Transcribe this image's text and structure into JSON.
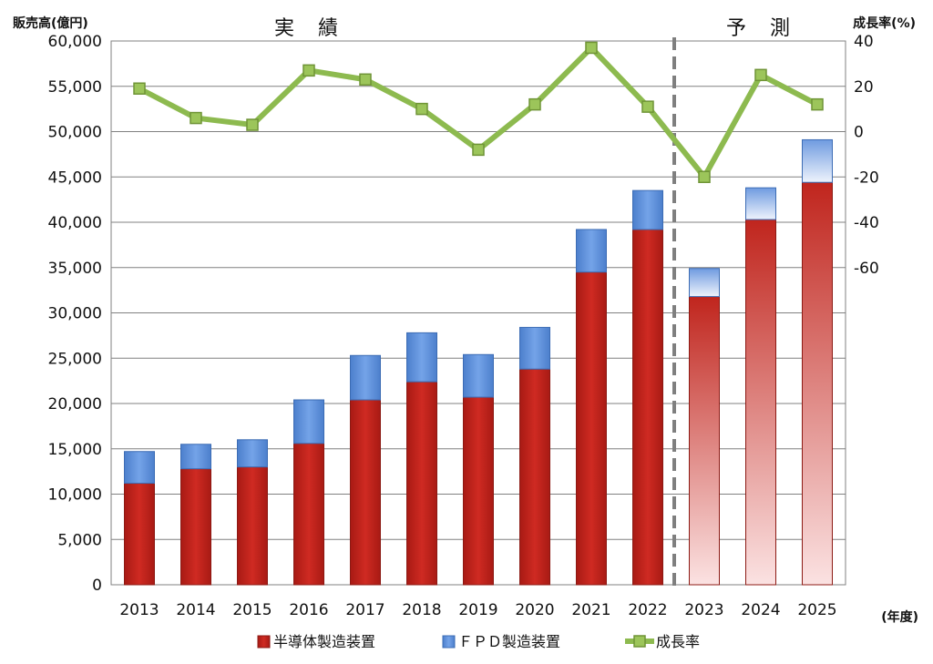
{
  "chart_data": {
    "type": "bar",
    "stacked": true,
    "categories": [
      "2013",
      "2014",
      "2015",
      "2016",
      "2017",
      "2018",
      "2019",
      "2020",
      "2021",
      "2022",
      "2023",
      "2024",
      "2025"
    ],
    "series": [
      {
        "name": "半導体製造装置",
        "color": "#c0251d",
        "values": [
          11200,
          12800,
          13000,
          15600,
          20400,
          22400,
          20700,
          23800,
          34500,
          39200,
          31800,
          40300,
          44400
        ]
      },
      {
        "name": "ＦＰＤ製造装置",
        "color": "#5b8fd8",
        "values": [
          3500,
          2700,
          3000,
          4800,
          4900,
          5400,
          4700,
          4600,
          4700,
          4300,
          3100,
          3500,
          4700
        ]
      }
    ],
    "line_series": {
      "name": "成長率",
      "color": "#8dba4f",
      "values": [
        19,
        6,
        3,
        27,
        23,
        10,
        -8,
        12,
        37,
        11,
        -20,
        25,
        12
      ]
    },
    "forecast_from_category": "2023",
    "section_labels": {
      "actual": "実　績",
      "forecast": "予　測"
    },
    "ylabel": "販売高(億円)",
    "y2label": "成長率(%)",
    "xlabel": "(年度)",
    "ylim": [
      0,
      60000
    ],
    "y_ticks": [
      "0",
      "5,000",
      "10,000",
      "15,000",
      "20,000",
      "25,000",
      "30,000",
      "35,000",
      "40,000",
      "45,000",
      "50,000",
      "55,000",
      "60,000"
    ],
    "y2lim": [
      -200,
      40
    ],
    "y2_ticks": [
      "40",
      "20",
      "0",
      "-20",
      "-40",
      "-60"
    ],
    "y2_tick_values": [
      40,
      20,
      0,
      -20,
      -40,
      -60
    ],
    "grid": true,
    "legend_position": "bottom"
  }
}
